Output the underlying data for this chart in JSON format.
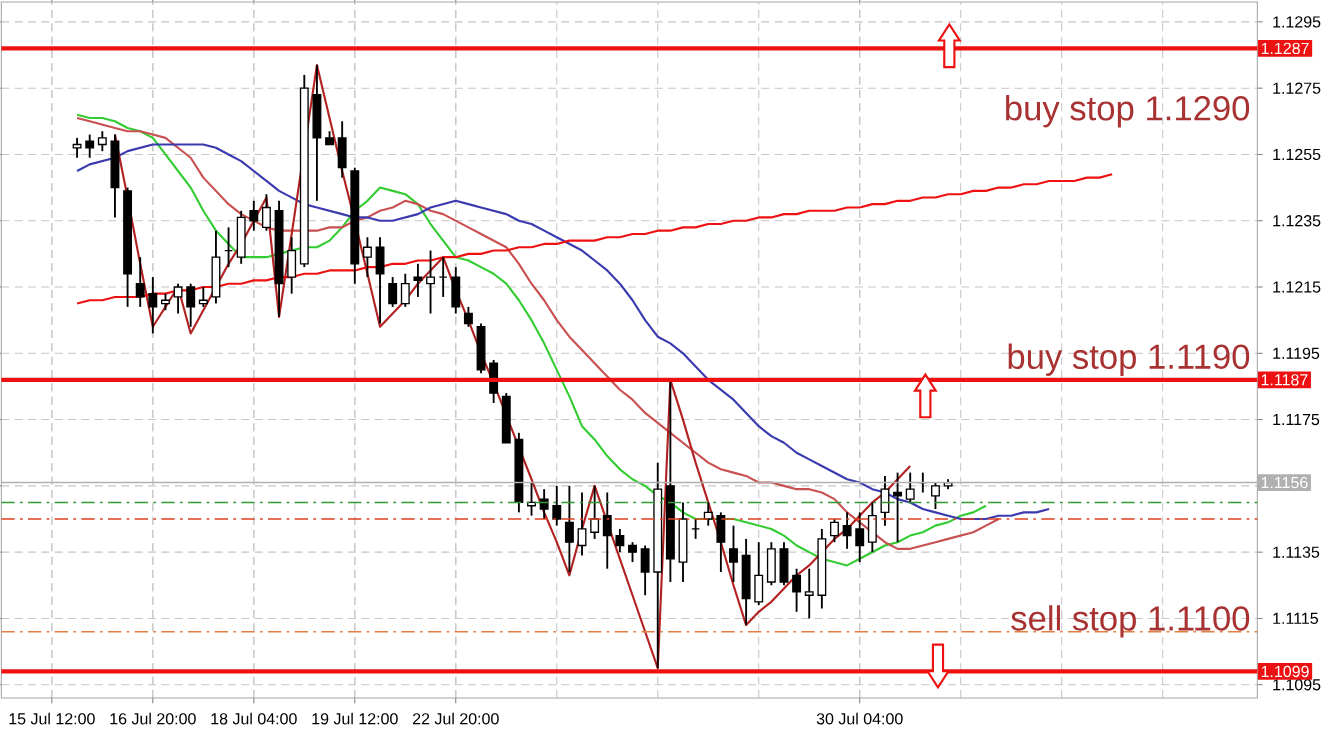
{
  "chart_data": {
    "type": "candlestick",
    "color": "#000000",
    "categories": [
      "15 Jul 12:00",
      null,
      null,
      null,
      null,
      null,
      null,
      null,
      "16 Jul 20:00",
      null,
      null,
      null,
      null,
      null,
      null,
      null,
      "18 Jul 04:00",
      null,
      null,
      null,
      null,
      null,
      null,
      null,
      "19 Jul 12:00",
      null,
      null,
      null,
      null,
      null,
      null,
      null,
      "22 Jul 20:00",
      null,
      null,
      null,
      null,
      null,
      null,
      null,
      null,
      null,
      null,
      null,
      null,
      null,
      null,
      null,
      null,
      null,
      null,
      null,
      null,
      null,
      null,
      null,
      null,
      null,
      null,
      null,
      null,
      null,
      null,
      null,
      "30 Jul 04:00",
      null,
      null,
      null,
      null,
      null,
      null,
      null,
      null,
      null,
      null,
      null,
      null,
      null,
      null,
      null,
      null,
      null,
      null,
      null,
      null,
      null,
      null,
      null,
      null,
      null,
      null,
      null,
      null,
      null,
      null,
      null
    ],
    "ohlc": [
      null,
      null,
      [
        1.1257,
        1.126,
        1.1254,
        1.1258
      ],
      [
        1.1259,
        1.1261,
        1.1254,
        1.1257
      ],
      [
        1.1258,
        1.1262,
        1.1256,
        1.126
      ],
      [
        1.1259,
        1.1261,
        1.1236,
        1.1245
      ],
      [
        1.1244,
        1.1245,
        1.1209,
        1.1219
      ],
      [
        1.1216,
        1.1224,
        1.1209,
        1.1212
      ],
      [
        1.1213,
        1.1218,
        1.1201,
        1.1209
      ],
      [
        1.121,
        1.1213,
        1.1208,
        1.1211
      ],
      [
        1.1212,
        1.1216,
        1.1207,
        1.1215
      ],
      [
        1.1215,
        1.1216,
        1.1203,
        1.1209
      ],
      [
        1.121,
        1.1215,
        1.1209,
        1.1211
      ],
      [
        1.1212,
        1.1232,
        1.121,
        1.1224
      ],
      [
        1.1226,
        1.1233,
        1.1221,
        1.1226
      ],
      [
        1.1224,
        1.1238,
        1.1222,
        1.1236
      ],
      [
        1.1238,
        1.1241,
        1.1232,
        1.1235
      ],
      [
        1.1233,
        1.1243,
        1.1232,
        1.1239
      ],
      [
        1.1238,
        1.1241,
        1.1206,
        1.1216
      ],
      [
        1.1218,
        1.123,
        1.1213,
        1.1226
      ],
      [
        1.1222,
        1.1279,
        1.1221,
        1.1275
      ],
      [
        1.1273,
        1.1282,
        1.1241,
        1.126
      ],
      [
        1.126,
        1.1262,
        1.1258,
        1.1258
      ],
      [
        1.126,
        1.1265,
        1.1248,
        1.1251
      ],
      [
        1.125,
        1.1251,
        1.1216,
        1.1222
      ],
      [
        1.1224,
        1.123,
        1.1218,
        1.1227
      ],
      [
        1.1227,
        1.123,
        1.1204,
        1.1219
      ],
      [
        1.1216,
        1.1218,
        1.1209,
        1.121
      ],
      [
        1.121,
        1.1219,
        1.1209,
        1.1216
      ],
      [
        1.1218,
        1.1222,
        1.1212,
        1.1217
      ],
      [
        1.1216,
        1.1226,
        1.1207,
        1.1218
      ],
      [
        1.1218,
        1.1224,
        1.1212,
        1.1218
      ],
      [
        1.1218,
        1.1221,
        1.1207,
        1.1209
      ],
      [
        1.1207,
        1.1209,
        1.1203,
        1.1204
      ],
      [
        1.1203,
        1.1204,
        1.1189,
        1.119
      ],
      [
        1.1192,
        1.1193,
        1.118,
        1.1183
      ],
      [
        1.1182,
        1.1183,
        1.1168,
        1.1168
      ],
      [
        1.1169,
        1.1171,
        1.1147,
        1.115
      ],
      [
        1.1149,
        1.1156,
        1.1146,
        1.115
      ],
      [
        1.1151,
        1.1154,
        1.1145,
        1.1148
      ],
      [
        1.1149,
        1.1155,
        1.1143,
        1.1145
      ],
      [
        1.1144,
        1.1155,
        1.1129,
        1.1138
      ],
      [
        1.1137,
        1.1153,
        1.1134,
        1.1142
      ],
      [
        1.1141,
        1.1155,
        1.1139,
        1.1145
      ],
      [
        1.1146,
        1.1153,
        1.113,
        1.114
      ],
      [
        1.114,
        1.1142,
        1.1135,
        1.1137
      ],
      [
        1.1137,
        1.1138,
        1.1132,
        1.1135
      ],
      [
        1.1136,
        1.1137,
        1.1122,
        1.1129
      ],
      [
        1.1129,
        1.1162,
        1.11,
        1.1154
      ],
      [
        1.1155,
        1.1187,
        1.1126,
        1.1133
      ],
      [
        1.1132,
        1.115,
        1.1126,
        1.1145
      ],
      [
        1.1142,
        1.1145,
        1.1139,
        1.1142
      ],
      [
        1.1145,
        1.115,
        1.1143,
        1.1147
      ],
      [
        1.1146,
        1.1147,
        1.1129,
        1.1138
      ],
      [
        1.1136,
        1.1143,
        1.1126,
        1.1132
      ],
      [
        1.1134,
        1.1139,
        1.1113,
        1.1121
      ],
      [
        1.112,
        1.1138,
        1.1119,
        1.1128
      ],
      [
        1.1126,
        1.1138,
        1.1125,
        1.1136
      ],
      [
        1.1136,
        1.1138,
        1.1125,
        1.1126
      ],
      [
        1.1128,
        1.113,
        1.1117,
        1.1123
      ],
      [
        1.1122,
        1.113,
        1.1115,
        1.1123
      ],
      [
        1.1122,
        1.1142,
        1.1118,
        1.1139
      ],
      [
        1.114,
        1.1145,
        1.1138,
        1.1144
      ],
      [
        1.1143,
        1.1147,
        1.1136,
        1.114
      ],
      [
        1.1142,
        1.1147,
        1.1132,
        1.1137
      ],
      [
        1.1138,
        1.115,
        1.1135,
        1.1146
      ],
      [
        1.1147,
        1.1158,
        1.1143,
        1.1154
      ],
      [
        1.1153,
        1.1159,
        1.1138,
        1.1152
      ],
      [
        1.1151,
        1.1159,
        1.115,
        1.1154
      ],
      [
        1.1156,
        1.1159,
        1.1153,
        1.1156
      ],
      [
        1.1152,
        1.1156,
        1.1148,
        1.1155
      ],
      [
        1.1155,
        1.1157,
        1.1154,
        1.1156
      ],
      null,
      null,
      null,
      null,
      null,
      null,
      null,
      null,
      null,
      null,
      null,
      null,
      null,
      null,
      null,
      null,
      null,
      null,
      null,
      null,
      null,
      null,
      null,
      null
    ],
    "series": [
      {
        "type": "line",
        "color": "#33cc33",
        "values": [
          null,
          null,
          1.1267,
          1.1266,
          1.1266,
          1.1265,
          1.1263,
          1.1262,
          1.126,
          1.1255,
          1.125,
          1.1245,
          1.1238,
          1.1232,
          1.1228,
          1.1224,
          1.1224,
          1.1224,
          1.1225,
          1.1226,
          1.1227,
          1.1227,
          1.1229,
          1.1233,
          1.1238,
          1.1241,
          1.1245,
          1.1244,
          1.1243,
          1.124,
          1.1234,
          1.1229,
          1.1224,
          1.1223,
          1.1221,
          1.1219,
          1.1216,
          1.1211,
          1.1205,
          1.1198,
          1.119,
          1.1182,
          1.1173,
          1.1169,
          1.1164,
          1.116,
          1.1157,
          1.1155,
          1.1152,
          1.115,
          1.1147,
          1.1145,
          1.1145,
          1.1145,
          1.1145,
          1.1144,
          1.1143,
          1.1142,
          1.114,
          1.1137,
          1.1135,
          1.1133,
          1.1132,
          1.1131,
          1.1133,
          1.1135,
          1.1137,
          1.1138,
          1.114,
          1.1141,
          1.1143,
          1.1144,
          1.1146,
          1.1147,
          1.1149,
          null,
          null,
          null,
          null,
          null,
          null,
          null,
          null,
          null,
          null,
          null,
          null,
          null,
          null,
          null,
          null,
          null,
          null,
          null,
          null,
          null
        ]
      },
      {
        "type": "line",
        "color": "#c85050",
        "values": [
          null,
          null,
          1.1266,
          1.1265,
          1.1264,
          1.1263,
          1.1262,
          1.1262,
          1.1261,
          1.126,
          1.1257,
          1.1254,
          1.1248,
          1.1244,
          1.124,
          1.1237,
          1.1235,
          1.1233,
          1.1232,
          1.1232,
          1.1232,
          1.1232,
          1.1233,
          1.1233,
          1.1235,
          1.1236,
          1.1238,
          1.1239,
          1.1241,
          1.124,
          1.1238,
          1.1237,
          1.1235,
          1.1233,
          1.1231,
          1.1229,
          1.1227,
          1.1222,
          1.1216,
          1.1211,
          1.1205,
          1.12,
          1.1196,
          1.1192,
          1.1188,
          1.1184,
          1.1181,
          1.1177,
          1.1174,
          1.1171,
          1.1168,
          1.1165,
          1.1162,
          1.116,
          1.1159,
          1.1158,
          1.1156,
          1.1156,
          1.1155,
          1.1154,
          1.1154,
          1.1153,
          1.1151,
          1.1147,
          1.1144,
          1.1141,
          1.1138,
          1.1136,
          1.1136,
          1.1137,
          1.1138,
          1.1139,
          1.114,
          1.1141,
          1.1143,
          1.1145,
          null,
          null,
          null,
          null,
          null,
          null,
          null,
          null,
          null,
          null,
          null,
          null,
          null,
          null,
          null,
          null,
          null,
          null,
          null,
          null
        ]
      },
      {
        "type": "line",
        "color": "#3a3ab0",
        "values": [
          null,
          null,
          1.125,
          1.1252,
          1.1253,
          1.1254,
          1.1256,
          1.1257,
          1.1258,
          1.1258,
          1.1258,
          1.1258,
          1.1258,
          1.1257,
          1.1255,
          1.1253,
          1.125,
          1.1247,
          1.1244,
          1.1242,
          1.124,
          1.1239,
          1.1238,
          1.1237,
          1.1236,
          1.1236,
          1.1235,
          1.1235,
          1.1236,
          1.1237,
          1.1239,
          1.124,
          1.1241,
          1.124,
          1.1239,
          1.1238,
          1.1237,
          1.1235,
          1.1234,
          1.1232,
          1.123,
          1.1228,
          1.1226,
          1.1223,
          1.122,
          1.1216,
          1.1211,
          1.1205,
          1.12,
          1.1198,
          1.1195,
          1.1191,
          1.1187,
          1.1184,
          1.1181,
          1.1177,
          1.1173,
          1.117,
          1.1168,
          1.1165,
          1.1163,
          1.1161,
          1.1159,
          1.1157,
          1.1156,
          1.1154,
          1.1153,
          1.1151,
          1.115,
          1.1148,
          1.1147,
          1.1146,
          1.1145,
          1.1145,
          1.1145,
          1.1146,
          1.1146,
          1.1147,
          1.1147,
          1.1148,
          null,
          null,
          null,
          null,
          null,
          null,
          null,
          null,
          null,
          null,
          null,
          null,
          null,
          null,
          null,
          null
        ]
      },
      {
        "type": "line",
        "color": "#b22222",
        "values": [
          null,
          null,
          null,
          null,
          null,
          1.1261,
          1.1242,
          1.1222,
          1.1203,
          1.1209,
          1.1215,
          1.1201,
          1.1208,
          1.1215,
          1.1222,
          1.1228,
          1.1235,
          1.1242,
          1.1206,
          1.1231,
          null,
          1.1282,
          1.1266,
          1.125,
          1.1235,
          1.1219,
          1.1203,
          1.1207,
          1.1211,
          1.1216,
          1.122,
          1.1224,
          1.1214,
          1.1205,
          1.1195,
          1.1186,
          null,
          null,
          1.1157,
          1.1147,
          1.1138,
          1.1128,
          1.1142,
          1.1155,
          1.1144,
          1.1133,
          1.1122,
          1.1111,
          1.11,
          1.1187,
          1.1175,
          1.1162,
          1.115,
          1.1138,
          1.1125,
          1.1113,
          1.1117,
          1.112,
          1.1124,
          1.1128,
          1.1131,
          1.1135,
          1.1139,
          1.1142,
          1.1146,
          1.115,
          1.1153,
          1.1157,
          1.1161,
          null,
          null,
          null,
          null,
          null,
          null,
          null,
          null,
          null,
          null,
          null,
          null,
          null,
          null,
          null,
          null,
          null,
          null,
          null,
          null,
          null,
          null,
          null,
          null,
          null,
          null,
          null
        ]
      },
      {
        "type": "line",
        "color": "#ee1111",
        "values": [
          null,
          null,
          1.121,
          1.1211,
          1.1211,
          1.1212,
          1.1212,
          1.1212,
          1.1213,
          1.1213,
          1.1214,
          1.1214,
          1.1215,
          1.1215,
          1.1216,
          1.1216,
          1.1217,
          1.1217,
          1.1218,
          1.1218,
          1.1219,
          1.1219,
          1.122,
          1.122,
          1.122,
          1.1221,
          1.1221,
          1.1222,
          1.1222,
          1.1223,
          1.1223,
          1.1224,
          1.1224,
          1.1225,
          1.1225,
          1.1226,
          1.1226,
          1.1227,
          1.1227,
          1.1228,
          1.1228,
          1.1229,
          1.1229,
          1.1229,
          1.123,
          1.123,
          1.1231,
          1.1231,
          1.1232,
          1.1232,
          1.1233,
          1.1233,
          1.1234,
          1.1234,
          1.1235,
          1.1235,
          1.1236,
          1.1236,
          1.1237,
          1.1237,
          1.1238,
          1.1238,
          1.1238,
          1.1239,
          1.1239,
          1.124,
          1.124,
          1.1241,
          1.1241,
          1.1242,
          1.1242,
          1.1243,
          1.1243,
          1.1244,
          1.1244,
          1.1245,
          1.1245,
          1.1246,
          1.1246,
          1.1247,
          1.1247,
          1.1247,
          1.1248,
          1.1248,
          1.1249,
          null,
          null,
          null,
          null,
          null,
          null,
          null,
          null,
          null,
          null,
          null
        ]
      }
    ],
    "ylim": [
      1.1091,
      1.1301
    ],
    "yticks": [
      1.1095,
      1.1115,
      1.1135,
      {
        "value": 1.1155,
        "label": null
      },
      1.1175,
      1.1195,
      1.1215,
      1.1235,
      1.1255,
      1.1275,
      1.1295
    ],
    "grid": true,
    "ref_lines": [
      {
        "axis": "y",
        "value": 1.1287,
        "label": "1.1287",
        "color": "#ee1111"
      },
      {
        "axis": "y",
        "value": 1.1187,
        "label": "1.1187",
        "color": "#ee1111"
      },
      {
        "axis": "y",
        "value": 1.1099,
        "label": "1.1099",
        "color": "#ee1111"
      },
      {
        "axis": "y",
        "value": 1.1156,
        "label": "1.1156",
        "color": "#b0b0b0"
      },
      {
        "axis": "y",
        "value": 1.115,
        "color": "#339933",
        "line_style": "dashed"
      },
      {
        "axis": "y",
        "value": 1.1145,
        "color": "#e04020",
        "line_style": "dashed"
      },
      {
        "axis": "y",
        "value": 1.1111,
        "color": "#e08040",
        "line_style": "dashed"
      }
    ],
    "annotations": [
      "buy stop 1.1290",
      "buy stop 1.1190",
      "sell stop 1.1100"
    ]
  }
}
